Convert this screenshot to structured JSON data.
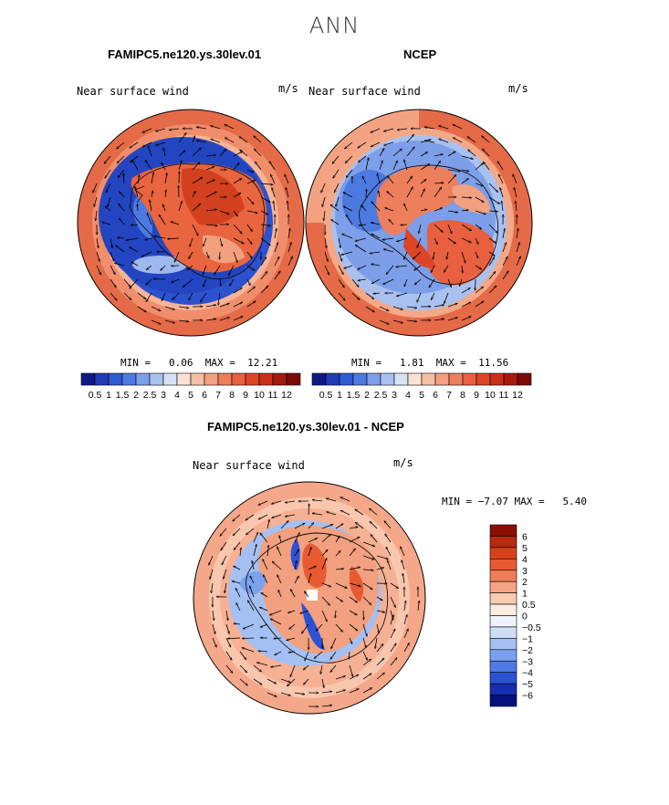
{
  "title": "ANN",
  "panels": [
    {
      "title": "FAMIPC5.ne120.ys.30lev.01",
      "variable": "Near surface wind",
      "units": "m/s",
      "min_label": "MIN =",
      "min": "0.06",
      "max_label": "MAX =",
      "max": "12.21"
    },
    {
      "title": "NCEP",
      "variable": "Near surface wind",
      "units": "m/s",
      "min_label": "MIN =",
      "min": "1.81",
      "max_label": "MAX =",
      "max": "11.56"
    },
    {
      "title": "FAMIPC5.ne120.ys.30lev.01 - NCEP",
      "variable": "Near surface wind",
      "units": "m/s",
      "min_label": "MIN =",
      "min": "−7.07",
      "max_label": "MAX =",
      "max": "5.40"
    }
  ],
  "colorbar_abs": {
    "colors": [
      "#0d1a85",
      "#1f3bb5",
      "#2f5ad1",
      "#4d7ae0",
      "#7d9ee8",
      "#a9c1ef",
      "#d6e3f5",
      "#fbe2d4",
      "#f5c0a5",
      "#f2a07f",
      "#ee7f5c",
      "#e8603f",
      "#dc4528",
      "#c8301c",
      "#a51a0f",
      "#7a0a08"
    ],
    "labels": [
      "0.5",
      "1",
      "1.5",
      "2",
      "2.5",
      "3",
      "4",
      "5",
      "6",
      "7",
      "8",
      "9",
      "10",
      "11",
      "12"
    ]
  },
  "colorbar_diff": {
    "colors": [
      "#06127a",
      "#1430b0",
      "#2a52d6",
      "#4d7ae6",
      "#7ba0ee",
      "#a4c0f2",
      "#cfdef6",
      "#eef3fb",
      "#fdece0",
      "#f9cbb0",
      "#f4a482",
      "#ef7e58",
      "#e85a32",
      "#d8401c",
      "#b82a10",
      "#8e0c06"
    ],
    "labels": [
      "6",
      "5",
      "4",
      "3",
      "2",
      "1",
      "0.5",
      "0",
      "−0.5",
      "−1",
      "−2",
      "−3",
      "−4",
      "−5",
      "−6"
    ]
  }
}
